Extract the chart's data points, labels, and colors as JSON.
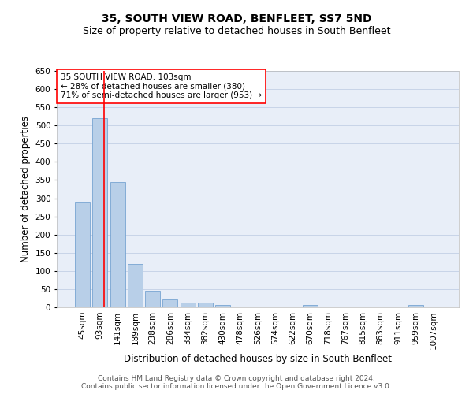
{
  "title1": "35, SOUTH VIEW ROAD, BENFLEET, SS7 5ND",
  "title2": "Size of property relative to detached houses in South Benfleet",
  "xlabel": "Distribution of detached houses by size in South Benfleet",
  "ylabel": "Number of detached properties",
  "categories": [
    "45sqm",
    "93sqm",
    "141sqm",
    "189sqm",
    "238sqm",
    "286sqm",
    "334sqm",
    "382sqm",
    "430sqm",
    "478sqm",
    "526sqm",
    "574sqm",
    "622sqm",
    "670sqm",
    "718sqm",
    "767sqm",
    "815sqm",
    "863sqm",
    "911sqm",
    "959sqm",
    "1007sqm"
  ],
  "values": [
    290,
    520,
    345,
    120,
    46,
    22,
    14,
    12,
    7,
    0,
    0,
    0,
    0,
    7,
    0,
    0,
    0,
    0,
    0,
    7,
    0
  ],
  "bar_color": "#b8cfe8",
  "bar_edge_color": "#6699cc",
  "grid_color": "#c8d4e8",
  "background_color": "#e8eef8",
  "annotation_text": "35 SOUTH VIEW ROAD: 103sqm\n← 28% of detached houses are smaller (380)\n71% of semi-detached houses are larger (953) →",
  "annotation_box_color": "white",
  "annotation_box_edge_color": "red",
  "vline_color": "red",
  "ylim": [
    0,
    650
  ],
  "yticks": [
    0,
    50,
    100,
    150,
    200,
    250,
    300,
    350,
    400,
    450,
    500,
    550,
    600,
    650
  ],
  "footer1": "Contains HM Land Registry data © Crown copyright and database right 2024.",
  "footer2": "Contains public sector information licensed under the Open Government Licence v3.0.",
  "title1_fontsize": 10,
  "title2_fontsize": 9,
  "xlabel_fontsize": 8.5,
  "ylabel_fontsize": 8.5,
  "tick_fontsize": 7.5,
  "annotation_fontsize": 7.5,
  "footer_fontsize": 6.5
}
